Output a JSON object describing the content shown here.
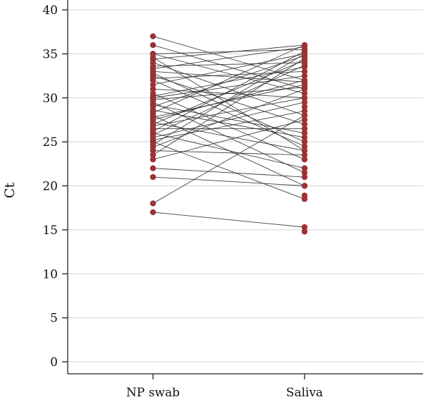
{
  "chart_data": {
    "type": "scatter",
    "title": "",
    "xlabel": "",
    "ylabel": "Ct",
    "categories": [
      "NP swab",
      "Saliva"
    ],
    "ylim": [
      0,
      40
    ],
    "yticks": [
      0,
      5,
      10,
      15,
      20,
      25,
      30,
      35,
      40
    ],
    "grid": true,
    "colors": {
      "point": "#9b3236",
      "line": "#2b2b2b",
      "grid": "#dcdcdc",
      "axis": "#222222"
    },
    "pairs": [
      [
        37.0,
        32.0
      ],
      [
        36.0,
        31.0
      ],
      [
        35.0,
        35.5
      ],
      [
        35.0,
        30.5
      ],
      [
        34.6,
        24.0
      ],
      [
        34.4,
        36.0
      ],
      [
        34.0,
        28.0
      ],
      [
        33.6,
        34.0
      ],
      [
        33.3,
        35.8
      ],
      [
        33.0,
        31.8
      ],
      [
        32.8,
        25.0
      ],
      [
        32.5,
        27.0
      ],
      [
        32.2,
        33.0
      ],
      [
        32.0,
        24.5
      ],
      [
        31.5,
        35.0
      ],
      [
        31.0,
        30.0
      ],
      [
        30.5,
        23.0
      ],
      [
        30.2,
        33.5
      ],
      [
        30.0,
        32.5
      ],
      [
        29.8,
        31.2
      ],
      [
        29.5,
        21.5
      ],
      [
        29.2,
        26.0
      ],
      [
        29.0,
        34.8
      ],
      [
        28.6,
        25.5
      ],
      [
        28.3,
        36.0
      ],
      [
        28.0,
        20.0
      ],
      [
        27.8,
        31.5
      ],
      [
        27.5,
        32.0
      ],
      [
        27.2,
        24.0
      ],
      [
        27.0,
        34.3
      ],
      [
        26.8,
        30.0
      ],
      [
        26.5,
        26.5
      ],
      [
        26.2,
        35.3
      ],
      [
        26.0,
        22.0
      ],
      [
        25.8,
        33.7
      ],
      [
        25.5,
        29.5
      ],
      [
        25.2,
        28.5
      ],
      [
        25.0,
        18.5
      ],
      [
        24.7,
        35.0
      ],
      [
        24.4,
        31.0
      ],
      [
        24.0,
        23.5
      ],
      [
        23.5,
        34.5
      ],
      [
        23.0,
        27.5
      ],
      [
        22.0,
        21.0
      ],
      [
        21.0,
        20.0
      ],
      [
        18.0,
        28.0
      ],
      [
        17.0,
        15.3
      ]
    ],
    "saliva_only": [
      14.8,
      18.9,
      22.0,
      29.0
    ]
  }
}
